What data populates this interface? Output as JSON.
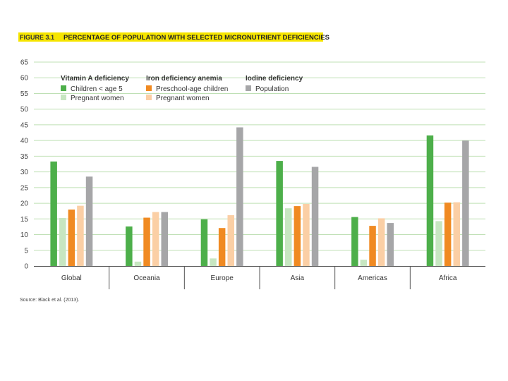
{
  "chart_data": {
    "type": "bar",
    "figure_label": "FIGURE 3.1",
    "title": "PERCENTAGE OF POPULATION WITH SELECTED MICRONUTRIENT DEFICIENCIES",
    "categories": [
      "Global",
      "Oceania",
      "Europe",
      "Asia",
      "Americas",
      "Africa"
    ],
    "ylim": [
      0,
      65
    ],
    "yticks": [
      0,
      5,
      10,
      15,
      20,
      25,
      30,
      35,
      40,
      45,
      50,
      55,
      60,
      65
    ],
    "xlabel": "",
    "ylabel": "",
    "grid": true,
    "legend_groups": [
      {
        "heading": "Vitamin A deficiency",
        "series": [
          0,
          1
        ]
      },
      {
        "heading": "Iron deficiency anemia",
        "series": [
          2,
          3
        ]
      },
      {
        "heading": "Iodine deficiency",
        "series": [
          4
        ]
      }
    ],
    "series": [
      {
        "name": "Children < age 5",
        "color": "#4daf4a",
        "values": [
          33.3,
          12.6,
          14.9,
          33.5,
          15.6,
          41.6
        ]
      },
      {
        "name": "Pregnant women",
        "color": "#c7e6c1",
        "values": [
          15.3,
          1.4,
          2.4,
          18.4,
          2.0,
          14.3
        ]
      },
      {
        "name": "Preschool-age children",
        "color": "#f08a22",
        "values": [
          18.0,
          15.4,
          12.1,
          19.1,
          12.8,
          20.2
        ]
      },
      {
        "name": "Pregnant women",
        "color": "#fbcfa5",
        "values": [
          19.2,
          17.2,
          16.2,
          19.8,
          15.2,
          20.3
        ]
      },
      {
        "name": "Population",
        "color": "#a6a6a8",
        "values": [
          28.5,
          17.2,
          44.2,
          31.6,
          13.7,
          40.0
        ]
      }
    ],
    "source": "Source: Black et al. (2013)."
  },
  "colors": {
    "title_highlight": "#f6e500",
    "grid": "#bfe0b5",
    "axis": "#555555"
  }
}
